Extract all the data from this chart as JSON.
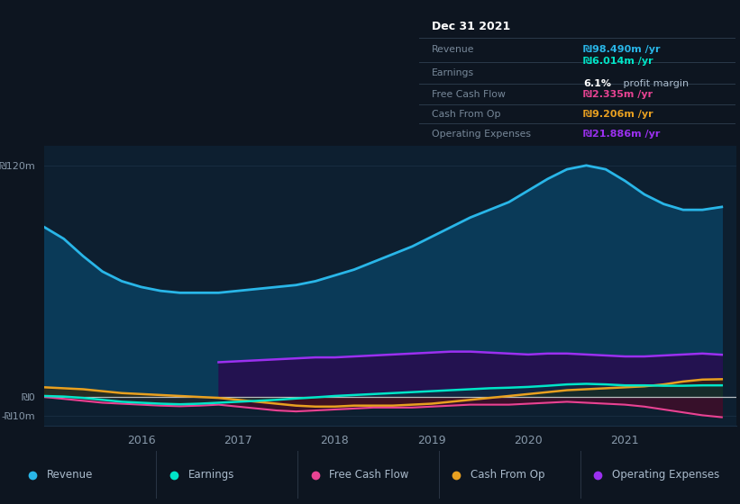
{
  "background_color": "#0d1520",
  "plot_bg": "#0d1f30",
  "ylim": [
    -15,
    130
  ],
  "xlim": [
    2015.0,
    2022.15
  ],
  "ytick_positions": [
    -10,
    0,
    120
  ],
  "ytick_labels": [
    "-₪10m",
    "₪0",
    "₪120m"
  ],
  "xtick_positions": [
    2016,
    2017,
    2018,
    2019,
    2020,
    2021
  ],
  "xtick_labels": [
    "2016",
    "2017",
    "2018",
    "2019",
    "2020",
    "2021"
  ],
  "revenue_x": [
    2015.0,
    2015.2,
    2015.4,
    2015.6,
    2015.8,
    2016.0,
    2016.2,
    2016.4,
    2016.6,
    2016.8,
    2017.0,
    2017.2,
    2017.4,
    2017.6,
    2017.8,
    2018.0,
    2018.2,
    2018.4,
    2018.6,
    2018.8,
    2019.0,
    2019.2,
    2019.4,
    2019.6,
    2019.8,
    2020.0,
    2020.2,
    2020.4,
    2020.6,
    2020.8,
    2021.0,
    2021.2,
    2021.4,
    2021.6,
    2021.8,
    2022.0
  ],
  "revenue_y": [
    88,
    82,
    73,
    65,
    60,
    57,
    55,
    54,
    54,
    54,
    55,
    56,
    57,
    58,
    60,
    63,
    66,
    70,
    74,
    78,
    83,
    88,
    93,
    97,
    101,
    107,
    113,
    118,
    120,
    118,
    112,
    105,
    100,
    97,
    97,
    98.5
  ],
  "earnings_x": [
    2015.0,
    2015.2,
    2015.4,
    2015.6,
    2015.8,
    2016.0,
    2016.2,
    2016.4,
    2016.6,
    2016.8,
    2017.0,
    2017.2,
    2017.4,
    2017.6,
    2017.8,
    2018.0,
    2018.2,
    2018.4,
    2018.6,
    2018.8,
    2019.0,
    2019.2,
    2019.4,
    2019.6,
    2019.8,
    2020.0,
    2020.2,
    2020.4,
    2020.6,
    2020.8,
    2021.0,
    2021.2,
    2021.4,
    2021.6,
    2021.8,
    2022.0
  ],
  "earnings_y": [
    0.5,
    0.2,
    -0.5,
    -1.5,
    -2.5,
    -3.0,
    -3.5,
    -3.8,
    -3.5,
    -3.0,
    -2.5,
    -2.0,
    -1.5,
    -0.8,
    -0.2,
    0.5,
    1.0,
    1.5,
    2.0,
    2.5,
    3.0,
    3.5,
    4.0,
    4.5,
    4.8,
    5.2,
    5.8,
    6.5,
    6.8,
    6.5,
    6.0,
    6.0,
    5.8,
    5.8,
    6.0,
    6.014
  ],
  "fcf_x": [
    2015.0,
    2015.2,
    2015.4,
    2015.6,
    2015.8,
    2016.0,
    2016.2,
    2016.4,
    2016.6,
    2016.8,
    2017.0,
    2017.2,
    2017.4,
    2017.6,
    2017.8,
    2018.0,
    2018.2,
    2018.4,
    2018.6,
    2018.8,
    2019.0,
    2019.2,
    2019.4,
    2019.6,
    2019.8,
    2020.0,
    2020.2,
    2020.4,
    2020.6,
    2020.8,
    2021.0,
    2021.2,
    2021.4,
    2021.6,
    2021.8,
    2022.0
  ],
  "fcf_y": [
    0,
    -1,
    -2,
    -3,
    -3.5,
    -4.0,
    -4.5,
    -4.8,
    -4.5,
    -4.0,
    -5.0,
    -6.0,
    -7.0,
    -7.5,
    -7.0,
    -6.5,
    -6.0,
    -5.5,
    -5.5,
    -5.5,
    -5.0,
    -4.5,
    -4.0,
    -4.0,
    -4.0,
    -3.5,
    -3.0,
    -2.5,
    -3.0,
    -3.5,
    -4.0,
    -5.0,
    -6.5,
    -8.0,
    -9.5,
    -10.5
  ],
  "cashop_x": [
    2015.0,
    2015.2,
    2015.4,
    2015.6,
    2015.8,
    2016.0,
    2016.2,
    2016.4,
    2016.6,
    2016.8,
    2017.0,
    2017.2,
    2017.4,
    2017.6,
    2017.8,
    2018.0,
    2018.2,
    2018.4,
    2018.6,
    2018.8,
    2019.0,
    2019.2,
    2019.4,
    2019.6,
    2019.8,
    2020.0,
    2020.2,
    2020.4,
    2020.6,
    2020.8,
    2021.0,
    2021.2,
    2021.4,
    2021.6,
    2021.8,
    2022.0
  ],
  "cashop_y": [
    5,
    4.5,
    4,
    3,
    2,
    1.5,
    1.0,
    0.5,
    0.0,
    -0.5,
    -1.5,
    -2.5,
    -3.5,
    -4.5,
    -5.0,
    -5.0,
    -4.5,
    -4.5,
    -4.5,
    -4.0,
    -3.5,
    -2.5,
    -1.5,
    -0.5,
    0.5,
    1.5,
    2.5,
    3.5,
    4.0,
    4.5,
    5.0,
    5.5,
    6.5,
    8.0,
    9.0,
    9.2
  ],
  "opex_x": [
    2016.8,
    2017.0,
    2017.2,
    2017.4,
    2017.6,
    2017.8,
    2018.0,
    2018.2,
    2018.4,
    2018.6,
    2018.8,
    2019.0,
    2019.2,
    2019.4,
    2019.6,
    2019.8,
    2020.0,
    2020.2,
    2020.4,
    2020.6,
    2020.8,
    2021.0,
    2021.2,
    2021.4,
    2021.6,
    2021.8,
    2022.0
  ],
  "opex_y": [
    18,
    18.5,
    19.0,
    19.5,
    20.0,
    20.5,
    20.5,
    21.0,
    21.5,
    22.0,
    22.5,
    23.0,
    23.5,
    23.5,
    23.0,
    22.5,
    22.0,
    22.5,
    22.5,
    22.0,
    21.5,
    21.0,
    21.0,
    21.5,
    22.0,
    22.5,
    21.886
  ],
  "rev_color": "#29b6e8",
  "rev_fill": "#0a3f60",
  "earn_color": "#00e5c8",
  "earn_fill": "#003a35",
  "fcf_color": "#e84393",
  "fcf_fill": "#4a0a28",
  "cashop_color": "#e8a020",
  "cashop_fill": "#3a2500",
  "opex_color": "#9b30f0",
  "opex_fill": "#251050",
  "zero_line_color": "#ffffff",
  "grid_color": "#1a3045",
  "tooltip_bg": "#050d15",
  "tooltip_border": "#2a3a4a",
  "tooltip_label_color": "#778899",
  "tooltip_text_color": "#ccddee",
  "legend_bg": "#0d1a26",
  "legend_border": "#2a3545",
  "legend_text_color": "#aabbcc"
}
